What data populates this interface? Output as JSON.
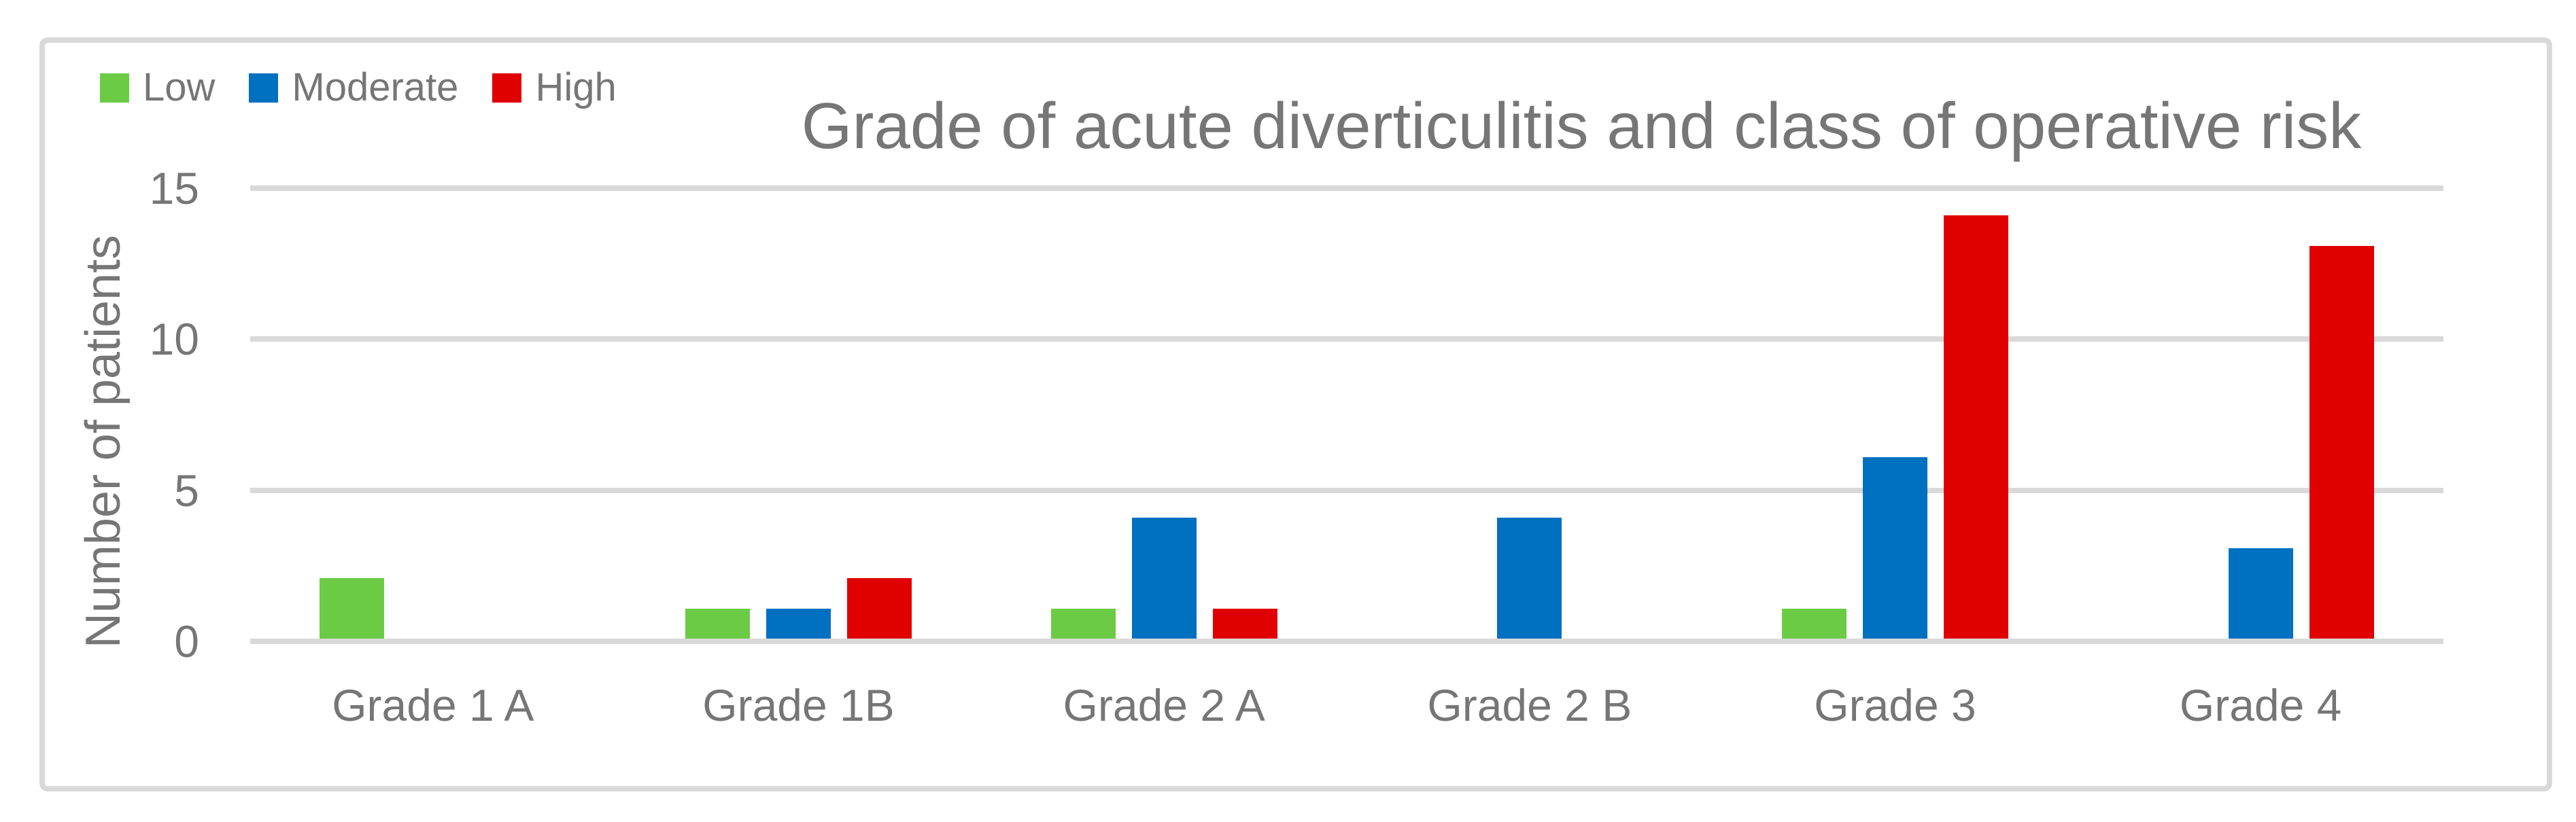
{
  "colors": {
    "text": "#767676",
    "gridline": "#d9d9d9",
    "frame_border": "#d9d9d9",
    "background": "#ffffff"
  },
  "chart_data": {
    "type": "bar",
    "title": "Grade of acute diverticulitis and class of operative risk",
    "xlabel": "",
    "ylabel": "Number of patients",
    "categories": [
      "Grade 1 A",
      "Grade 1B",
      "Grade 2 A",
      "Grade 2 B",
      "Grade 3",
      "Grade 4"
    ],
    "series": [
      {
        "name": "Low",
        "color": "#6bcb45",
        "values": [
          2,
          1,
          1,
          0,
          1,
          0
        ]
      },
      {
        "name": "Moderate",
        "color": "#0070c0",
        "values": [
          0,
          1,
          4,
          4,
          6,
          3
        ]
      },
      {
        "name": "High",
        "color": "#e00000",
        "values": [
          0,
          2,
          1,
          0,
          14,
          13
        ]
      }
    ],
    "yticks": [
      0,
      5,
      10,
      15
    ],
    "ylim": [
      0,
      15
    ],
    "grid": true,
    "legend_position": "top-left"
  }
}
